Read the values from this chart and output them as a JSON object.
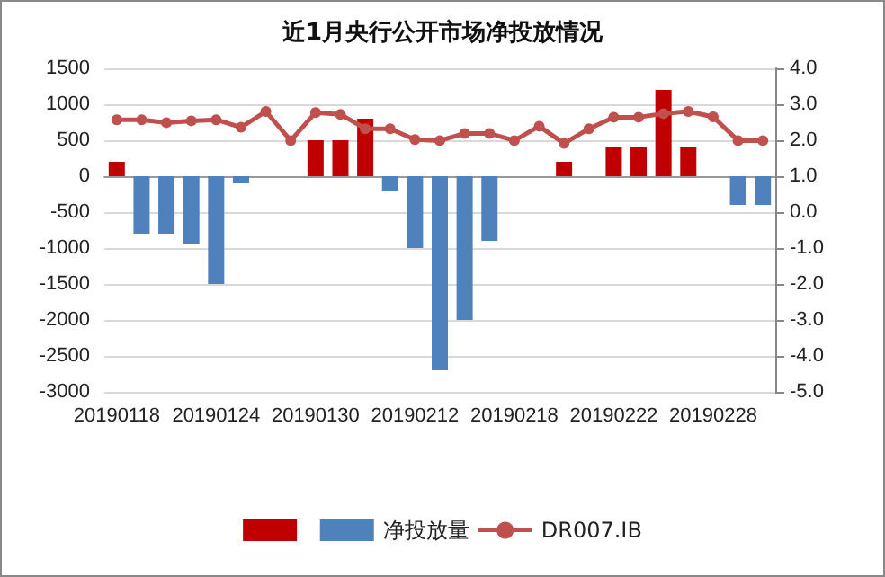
{
  "chart_data": {
    "type": "bar",
    "title": "近1月央行公开市场净投放情况",
    "categories": [
      "20190118",
      null,
      null,
      null,
      "20190124",
      null,
      null,
      null,
      "20190130",
      null,
      null,
      null,
      "20190212",
      null,
      null,
      null,
      "20190218",
      null,
      null,
      null,
      "20190222",
      null,
      null,
      null,
      "20190228",
      null,
      null
    ],
    "series": [
      {
        "color": "#c00000",
        "values": [
          200,
          null,
          null,
          null,
          null,
          null,
          null,
          null,
          500,
          500,
          800,
          null,
          null,
          null,
          null,
          null,
          null,
          null,
          200,
          null,
          400,
          400,
          1200,
          400,
          null,
          null,
          null
        ]
      },
      {
        "name": "净投放量",
        "color": "#4f81bd",
        "values": [
          null,
          -800,
          -800,
          -950,
          -1500,
          -100,
          null,
          null,
          null,
          null,
          null,
          -200,
          -1000,
          -2700,
          -2000,
          -900,
          null,
          null,
          null,
          null,
          null,
          null,
          null,
          null,
          null,
          -400,
          -400
        ]
      },
      {
        "name": "DR007.IB",
        "type": "line",
        "axis": "y2",
        "color": "#c0504d",
        "values": [
          2.57,
          2.57,
          2.49,
          2.54,
          2.57,
          2.36,
          2.8,
          1.99,
          2.77,
          2.72,
          2.32,
          2.32,
          2.02,
          1.99,
          2.19,
          2.19,
          1.99,
          2.39,
          1.91,
          2.32,
          2.64,
          2.64,
          2.74,
          2.8,
          2.65,
          1.99,
          1.99
        ]
      }
    ],
    "ylim": [
      -3000,
      1500
    ],
    "yticks": [
      -3000,
      -2500,
      -2000,
      -1500,
      -1000,
      -500,
      0,
      500,
      1000,
      1500
    ],
    "y2lim": [
      -5,
      4
    ],
    "y2ticks": [
      {
        "value": -5,
        "label": "-5.0"
      },
      {
        "value": -4,
        "label": "-4.0"
      },
      {
        "value": -3,
        "label": "-3.0"
      },
      {
        "value": -2,
        "label": "-2.0"
      },
      {
        "value": -1,
        "label": "-1.0"
      },
      {
        "value": 0,
        "label": "0.0"
      },
      {
        "value": 1,
        "label": "1.0"
      },
      {
        "value": 2,
        "label": "2.0"
      },
      {
        "value": 3,
        "label": "3.0"
      },
      {
        "value": 4,
        "label": "4.0"
      }
    ],
    "grid": "y",
    "legend": "bottom",
    "marker": "circle"
  }
}
